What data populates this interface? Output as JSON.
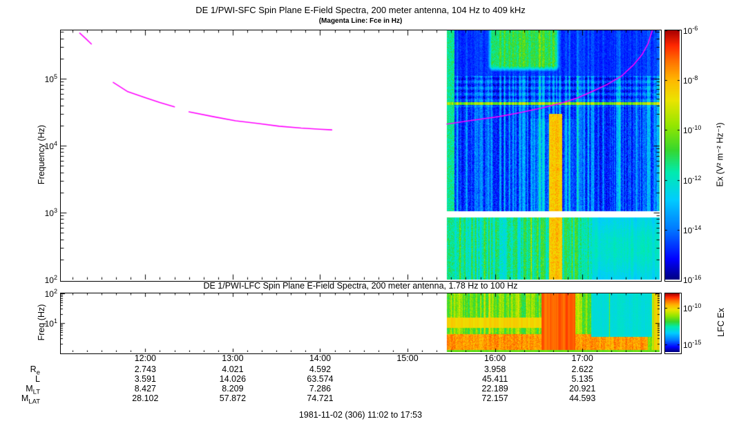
{
  "sfc": {
    "title": "DE 1/PWI-SFC  Spin Plane E-Field Spectra, 200 meter antenna, 104 Hz to 409 kHz",
    "subtitle": "(Magenta Line: Fce in Hz)",
    "ylabel": "Frequency (Hz)",
    "ytick_exps": [
      5,
      4,
      3,
      2
    ],
    "colorbar": {
      "label": "Ex (V² m⁻² Hz⁻¹)",
      "tick_exps": [
        -6,
        -8,
        -10,
        -12,
        -14,
        -16
      ]
    }
  },
  "lfc": {
    "title": "DE 1/PWI-LFC  Spin Plane E-Field Spectra, 200 meter antenna, 1.78 Hz to 100 Hz",
    "ylabel": "Freq (Hz)",
    "ytick_exps": [
      2,
      1
    ],
    "colorbar": {
      "label": "LFC Ex",
      "tick_exps": [
        -10,
        -15
      ]
    }
  },
  "time_axis": {
    "start": "11:02",
    "end": "17:53",
    "tick_labels": [
      "12:00",
      "13:00",
      "14:00",
      "15:00",
      "16:00",
      "17:00"
    ]
  },
  "ephemeris": {
    "columns": [
      "12:00",
      "13:00",
      "14:00",
      "16:00",
      "17:00"
    ],
    "rows": [
      {
        "label": "R",
        "sub": "e",
        "values": [
          "2.743",
          "4.021",
          "4.592",
          "3.958",
          "2.622"
        ]
      },
      {
        "label": "L",
        "sub": "",
        "values": [
          "3.591",
          "14.026",
          "63.574",
          "45.411",
          "5.135"
        ]
      },
      {
        "label": "M",
        "sub": "LT",
        "values": [
          "8.427",
          "8.209",
          "7.286",
          "22.189",
          "20.921"
        ]
      },
      {
        "label": "M",
        "sub": "LAT",
        "values": [
          "28.102",
          "57.872",
          "74.721",
          "72.157",
          "44.593"
        ]
      }
    ]
  },
  "footer": "1981-11-02 (306) 11:02 to 17:53",
  "chart_data": [
    {
      "type": "heatmap",
      "instrument": "DE 1/PWI-SFC",
      "title": "DE 1/PWI-SFC Spin Plane E-Field Spectra, 200 meter antenna, 104 Hz to 409 kHz",
      "subtitle": "(Magenta Line: Fce in Hz)",
      "ylabel": "Frequency (Hz)",
      "yscale": "log",
      "stated_freq_range_hz": [
        104,
        409000
      ],
      "plot_freq_range_hz": [
        100,
        530000
      ],
      "ytick_exps": [
        5,
        4,
        3,
        2
      ],
      "time_start": "11:02",
      "time_end": "17:53",
      "xtick_labels": [
        "12:00",
        "13:00",
        "14:00",
        "15:00",
        "16:00",
        "17:00"
      ],
      "value_label": "Ex (V² m⁻² Hz⁻¹)",
      "value_log10_range": [
        -16,
        -6
      ],
      "colorbar_tick_exps": [
        -6,
        -8,
        -10,
        -12,
        -14,
        -16
      ],
      "data_coverage_min": [
        265,
        411
      ],
      "gap_band_hz": [
        860,
        1060
      ],
      "background_level": -15.3,
      "streak_level": -11.3,
      "top_background_level": -15,
      "low_background_level": -12.6,
      "low_streak_level": -9.6,
      "features": [
        {
          "name": "smooth-low-right",
          "t": [
            365,
            411
          ],
          "f": [
            100,
            860
          ],
          "level": -13
        },
        {
          "name": "enhanced-columns",
          "t": [
            322,
            353
          ],
          "f": [
            100,
            25000
          ],
          "level": -11
        },
        {
          "name": "intense-column",
          "t": [
            335,
            344
          ],
          "f": [
            100,
            30000
          ],
          "level": -8.6
        },
        {
          "name": "narrowband-line",
          "t": [
            265,
            411
          ],
          "f": [
            41000,
            45000
          ],
          "level": -10.5
        },
        {
          "name": "green-emission-blob",
          "t": [
            291,
            344
          ],
          "f": [
            115000,
            530000
          ],
          "level": -11
        },
        {
          "name": "entry-streak",
          "t": [
            265,
            270
          ],
          "f": [
            100,
            530000
          ],
          "level": -11.5
        }
      ],
      "fce_line": {
        "label": "Fce",
        "color": "#ff00ff",
        "units": [
          "minutes_after_start",
          "Hz"
        ],
        "segments": [
          [
            [
              13,
              480000
            ],
            [
              17,
              400000
            ],
            [
              21,
              330000
            ]
          ],
          [
            [
              36,
              88000
            ],
            [
              46,
              64000
            ],
            [
              58,
              52000
            ],
            [
              68,
              44000
            ],
            [
              78,
              38000
            ]
          ],
          [
            [
              88,
              32000
            ],
            [
              105,
              27000
            ],
            [
              120,
              23500
            ],
            [
              135,
              21500
            ],
            [
              150,
              19500
            ],
            [
              165,
              18300
            ],
            [
              178,
              17600
            ],
            [
              186,
              17200
            ]
          ],
          [
            [
              265,
              21000
            ],
            [
              280,
              23500
            ],
            [
              300,
              27000
            ],
            [
              315,
              31000
            ],
            [
              330,
              36500
            ],
            [
              345,
              44000
            ],
            [
              355,
              52000
            ],
            [
              365,
              65000
            ],
            [
              375,
              82000
            ],
            [
              385,
              110000
            ],
            [
              393,
              160000
            ],
            [
              399,
              230000
            ],
            [
              403,
              330000
            ],
            [
              406,
              530000
            ]
          ]
        ]
      }
    },
    {
      "type": "heatmap",
      "instrument": "DE 1/PWI-LFC",
      "title": "DE 1/PWI-LFC Spin Plane E-Field Spectra, 200 meter antenna, 1.78 Hz to 100 Hz",
      "ylabel": "Freq (Hz)",
      "yscale": "log",
      "stated_freq_range_hz": [
        1.78,
        100
      ],
      "plot_freq_range_hz": [
        1.05,
        100
      ],
      "ytick_exps": [
        2,
        1
      ],
      "time_start": "11:02",
      "time_end": "17:53",
      "xtick_labels": [
        "12:00",
        "13:00",
        "14:00",
        "15:00",
        "16:00",
        "17:00"
      ],
      "value_label": "LFC Ex",
      "value_log10_range": [
        -16,
        -8
      ],
      "colorbar_tick_exps": [
        -10,
        -15
      ],
      "data_coverage_min": [
        265,
        411
      ],
      "background_level": -12.3,
      "streak_level": -9.8,
      "features": [
        {
          "name": "strong-low-band",
          "t": [
            265,
            403
          ],
          "f": [
            1.05,
            4.2
          ],
          "level": -9.3
        },
        {
          "name": "mid-band",
          "t": [
            265,
            332
          ],
          "f": [
            7,
            15
          ],
          "level": -10
        },
        {
          "name": "red-columns",
          "t": [
            330,
            353
          ],
          "f": [
            1.05,
            100
          ],
          "level": -9.2
        },
        {
          "name": "cyan-block",
          "t": [
            364,
            406
          ],
          "f": [
            3.4,
            100
          ],
          "level": -13
        },
        {
          "name": "right-edge-streaks",
          "t": [
            406,
            411
          ],
          "f": [
            1.05,
            100
          ],
          "level": -10.3
        },
        {
          "name": "bottom-edge-strip",
          "t": [
            265,
            411
          ],
          "f": [
            1.05,
            1.25
          ],
          "level": -11.5
        }
      ]
    }
  ]
}
